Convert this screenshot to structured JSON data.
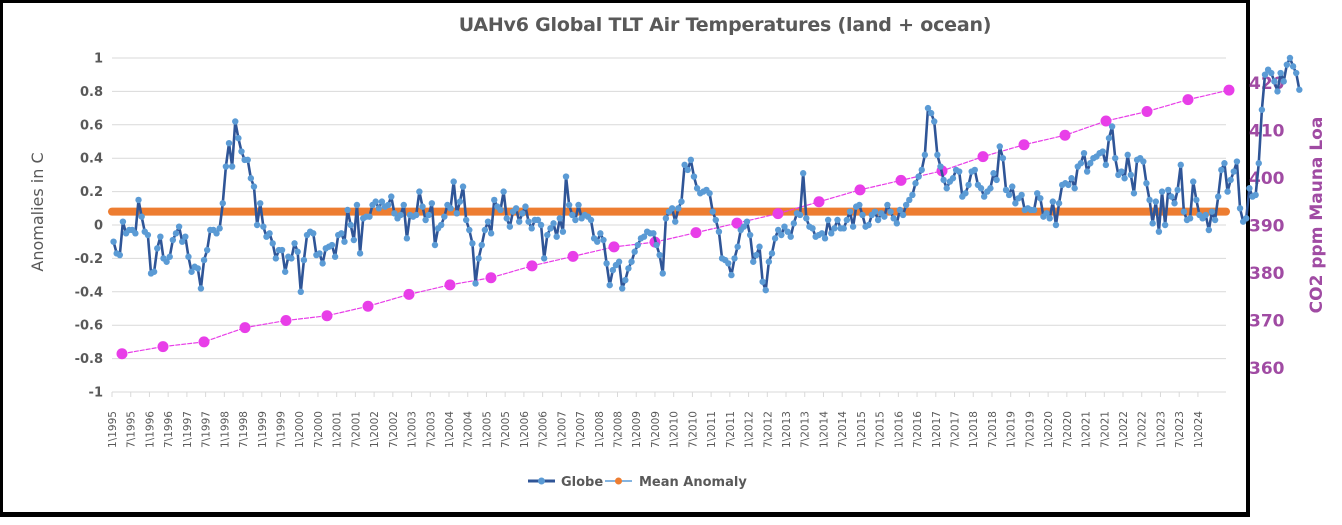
{
  "chart_data": {
    "type": "line",
    "title": "UAHv6 Global TLT Air Temperatures (land + ocean)",
    "xlabel": "",
    "ylabel": "Anomalies in C",
    "y2label": "CO2 ppm Mauna Loa",
    "ylim": [
      -1,
      1
    ],
    "y2lim": [
      355,
      425
    ],
    "grid": true,
    "legend_position": "bottom",
    "y_ticks": [
      "1",
      "0.8",
      "0.6",
      "0.4",
      "0.2",
      "0",
      "-0.2",
      "-0.4",
      "-0.6",
      "-0.8",
      "-1"
    ],
    "y_tick_values": [
      1,
      0.8,
      0.6,
      0.4,
      0.2,
      0,
      -0.2,
      -0.4,
      -0.6,
      -0.8,
      -1
    ],
    "y2_ticks": [
      "420",
      "410",
      "400",
      "390",
      "380",
      "370",
      "360"
    ],
    "y2_tick_values": [
      420,
      410,
      400,
      390,
      380,
      370,
      360
    ],
    "x_tick_labels": [
      "1\\1995",
      "7\\1995",
      "1\\1996",
      "7\\1996",
      "1\\1997",
      "7\\1997",
      "1\\1998",
      "7\\1998",
      "1\\1999",
      "7\\1999",
      "1\\2000",
      "7\\2000",
      "1\\2001",
      "7\\2001",
      "1\\2002",
      "7\\2002",
      "1\\2003",
      "7\\2003",
      "1\\2004",
      "7\\2004",
      "1\\2005",
      "7\\2005",
      "1\\2006",
      "7\\2006",
      "1\\2007",
      "7\\2007",
      "1\\2008",
      "7\\2008",
      "1\\2009",
      "7\\2009",
      "1\\2010",
      "7\\2010",
      "1\\2011",
      "7\\2011",
      "1\\2012",
      "7\\2012",
      "1\\2013",
      "7\\2013",
      "1\\2014",
      "7\\2014",
      "1\\2015",
      "7\\2015",
      "1\\2016",
      "7\\2016",
      "1\\2017",
      "7\\2017",
      "1\\2018",
      "7\\2018",
      "1\\2019",
      "7\\2019",
      "1\\2020",
      "7\\2020",
      "1\\2021",
      "7\\2021",
      "1\\2022",
      "7\\2022",
      "1\\2023",
      "7\\2023",
      "1\\2024"
    ],
    "start": "1995-01",
    "series": [
      {
        "name": "Globe",
        "color": "#2f5597",
        "marker_color": "#5b9bd5",
        "axis": "left",
        "values": [
          -0.1,
          -0.17,
          -0.18,
          0.02,
          -0.05,
          -0.03,
          -0.03,
          -0.05,
          0.15,
          0.05,
          -0.04,
          -0.06,
          -0.29,
          -0.28,
          -0.14,
          -0.07,
          -0.2,
          -0.22,
          -0.19,
          -0.09,
          -0.05,
          -0.01,
          -0.1,
          -0.07,
          -0.19,
          -0.28,
          -0.25,
          -0.26,
          -0.38,
          -0.21,
          -0.15,
          -0.03,
          -0.03,
          -0.05,
          -0.02,
          0.13,
          0.35,
          0.49,
          0.35,
          0.62,
          0.52,
          0.44,
          0.39,
          0.39,
          0.28,
          0.23,
          0.0,
          0.13,
          -0.01,
          -0.07,
          -0.05,
          -0.11,
          -0.2,
          -0.15,
          -0.15,
          -0.28,
          -0.19,
          -0.2,
          -0.11,
          -0.16,
          -0.4,
          -0.21,
          -0.06,
          -0.04,
          -0.05,
          -0.18,
          -0.17,
          -0.23,
          -0.14,
          -0.13,
          -0.12,
          -0.19,
          -0.06,
          -0.05,
          -0.1,
          0.09,
          0.0,
          -0.09,
          0.12,
          -0.17,
          0.04,
          0.05,
          0.05,
          0.12,
          0.14,
          0.1,
          0.14,
          0.11,
          0.12,
          0.17,
          0.07,
          0.04,
          0.06,
          0.12,
          -0.08,
          0.06,
          0.05,
          0.06,
          0.2,
          0.11,
          0.03,
          0.06,
          0.13,
          -0.12,
          -0.02,
          0.0,
          0.05,
          0.12,
          0.1,
          0.26,
          0.07,
          0.14,
          0.23,
          0.03,
          -0.03,
          -0.11,
          -0.35,
          -0.2,
          -0.12,
          -0.03,
          0.02,
          -0.05,
          0.15,
          0.11,
          0.09,
          0.2,
          0.04,
          -0.01,
          0.08,
          0.1,
          0.02,
          0.07,
          0.11,
          0.02,
          -0.02,
          0.03,
          0.03,
          0.0,
          -0.2,
          -0.06,
          -0.02,
          0.01,
          -0.07,
          0.04,
          -0.04,
          0.29,
          0.12,
          0.06,
          0.03,
          0.12,
          0.04,
          0.06,
          0.05,
          0.03,
          -0.08,
          -0.1,
          -0.05,
          -0.09,
          -0.23,
          -0.36,
          -0.27,
          -0.24,
          -0.22,
          -0.38,
          -0.33,
          -0.26,
          -0.22,
          -0.16,
          -0.12,
          -0.08,
          -0.07,
          -0.04,
          -0.05,
          -0.05,
          -0.12,
          -0.18,
          -0.29,
          0.04,
          0.08,
          0.1,
          0.02,
          0.1,
          0.14,
          0.36,
          0.33,
          0.39,
          0.29,
          0.22,
          0.19,
          0.2,
          0.21,
          0.19,
          0.08,
          0.03,
          -0.04,
          -0.2,
          -0.21,
          -0.23,
          -0.3,
          -0.2,
          -0.13,
          -0.03,
          -0.01,
          0.02,
          -0.06,
          -0.22,
          -0.18,
          -0.13,
          -0.34,
          -0.39,
          -0.22,
          -0.17,
          -0.08,
          -0.03,
          -0.06,
          -0.01,
          -0.04,
          -0.07,
          0.01,
          0.07,
          0.06,
          0.31,
          0.04,
          -0.01,
          -0.02,
          -0.07,
          -0.06,
          -0.05,
          -0.08,
          0.03,
          -0.05,
          -0.02,
          0.03,
          -0.02,
          -0.02,
          0.03,
          0.08,
          -0.01,
          0.11,
          0.12,
          0.06,
          -0.01,
          0.0,
          0.06,
          0.08,
          0.03,
          0.07,
          0.05,
          0.12,
          0.08,
          0.04,
          0.01,
          0.09,
          0.06,
          0.12,
          0.15,
          0.18,
          0.25,
          0.29,
          0.33,
          0.42,
          0.7,
          0.67,
          0.62,
          0.42,
          0.35,
          0.27,
          0.22,
          0.26,
          0.28,
          0.33,
          0.32,
          0.17,
          0.19,
          0.24,
          0.32,
          0.33,
          0.24,
          0.22,
          0.17,
          0.2,
          0.22,
          0.31,
          0.27,
          0.47,
          0.4,
          0.21,
          0.18,
          0.23,
          0.13,
          0.16,
          0.18,
          0.09,
          0.1,
          0.09,
          0.09,
          0.19,
          0.16,
          0.05,
          0.07,
          0.04,
          0.14,
          0.0,
          0.13,
          0.24,
          0.25,
          0.24,
          0.28,
          0.22,
          0.35,
          0.37,
          0.43,
          0.32,
          0.37,
          0.4,
          0.41,
          0.43,
          0.44,
          0.36,
          0.52,
          0.59,
          0.4,
          0.3,
          0.32,
          0.28,
          0.42,
          0.3,
          0.19,
          0.39,
          0.4,
          0.38,
          0.25,
          0.15,
          0.01,
          0.14,
          -0.04,
          0.2,
          0.0,
          0.21,
          0.17,
          0.13,
          0.21,
          0.36,
          0.08,
          0.03,
          0.04,
          0.26,
          0.15,
          0.06,
          0.04,
          0.06,
          -0.03,
          0.08,
          0.03,
          0.17,
          0.33,
          0.37,
          0.2,
          0.27,
          0.32,
          0.38,
          0.1,
          0.02,
          0.04,
          0.22,
          0.17,
          0.18,
          0.37,
          0.69,
          0.9,
          0.93,
          0.91,
          0.86,
          0.8,
          0.91,
          0.86,
          0.96,
          1.0,
          0.95,
          0.91,
          0.81
        ]
      },
      {
        "name": "Mean Anomaly",
        "color": "#ed7d31",
        "axis": "left",
        "value": 0.08
      },
      {
        "name": "CO2",
        "color": "#e83ee8",
        "axis": "right",
        "values": [
          363.0,
          364.5,
          365.5,
          368.5,
          370.0,
          371.0,
          373.0,
          375.5,
          377.5,
          379.0,
          381.5,
          383.5,
          385.5,
          386.5,
          388.5,
          390.5,
          392.5,
          395.0,
          397.5,
          399.5,
          401.5,
          404.5,
          407.0,
          409.0,
          412.0,
          414.0,
          416.5,
          418.5
        ]
      }
    ],
    "legend": [
      {
        "label": "Globe",
        "color": "#2f5597",
        "marker": "#5b9bd5"
      },
      {
        "label": "Mean Anomaly",
        "color": "#5b9bd5",
        "marker": "#ed7d31"
      }
    ]
  }
}
